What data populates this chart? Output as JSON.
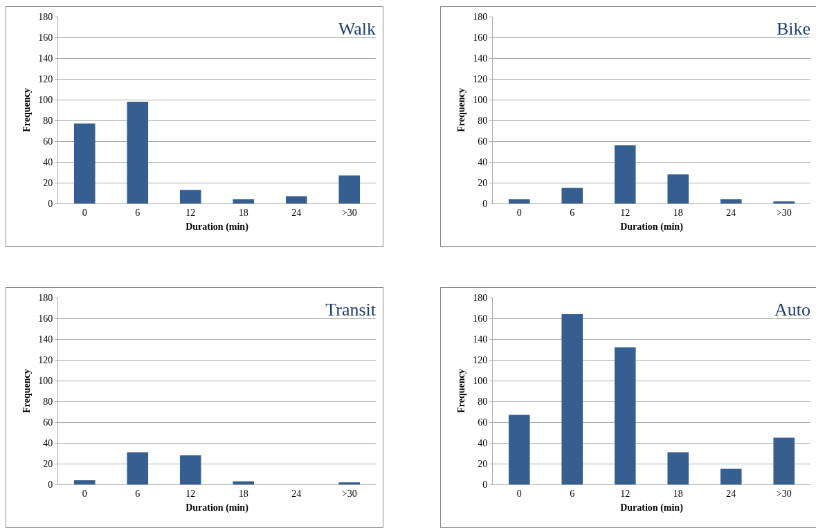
{
  "chart_data": [
    {
      "type": "bar",
      "title": "Walk",
      "xlabel": "Duration (min)",
      "ylabel": "Frequency",
      "categories": [
        "0",
        "6",
        "12",
        "18",
        "24",
        ">30"
      ],
      "values": [
        77,
        98,
        13,
        4,
        7,
        27
      ],
      "color": "#365f91",
      "ylim": [
        0,
        180
      ],
      "yticks": [
        0,
        20,
        40,
        60,
        80,
        100,
        120,
        140,
        160,
        180
      ],
      "grid": "y"
    },
    {
      "type": "bar",
      "title": "Bike",
      "xlabel": "Duration (min)",
      "ylabel": "Frequency",
      "categories": [
        "0",
        "6",
        "12",
        "18",
        "24",
        ">30"
      ],
      "values": [
        4,
        15,
        56,
        28,
        4,
        2
      ],
      "color": "#365f91",
      "ylim": [
        0,
        180
      ],
      "yticks": [
        0,
        20,
        40,
        60,
        80,
        100,
        120,
        140,
        160,
        180
      ],
      "grid": "y"
    },
    {
      "type": "bar",
      "title": "Transit",
      "xlabel": "Duration (min)",
      "ylabel": "Frequency",
      "categories": [
        "0",
        "6",
        "12",
        "18",
        "24",
        ">30"
      ],
      "values": [
        4,
        31,
        28,
        3,
        0,
        2
      ],
      "color": "#365f91",
      "ylim": [
        0,
        180
      ],
      "yticks": [
        0,
        20,
        40,
        60,
        80,
        100,
        120,
        140,
        160,
        180
      ],
      "grid": "y"
    },
    {
      "type": "bar",
      "title": "Auto",
      "xlabel": "Duration (min)",
      "ylabel": "Frequency",
      "categories": [
        "0",
        "6",
        "12",
        "18",
        "24",
        ">30"
      ],
      "values": [
        67,
        164,
        132,
        31,
        15,
        45
      ],
      "color": "#365f91",
      "ylim": [
        0,
        180
      ],
      "yticks": [
        0,
        20,
        40,
        60,
        80,
        100,
        120,
        140,
        160,
        180
      ],
      "grid": "y"
    }
  ]
}
